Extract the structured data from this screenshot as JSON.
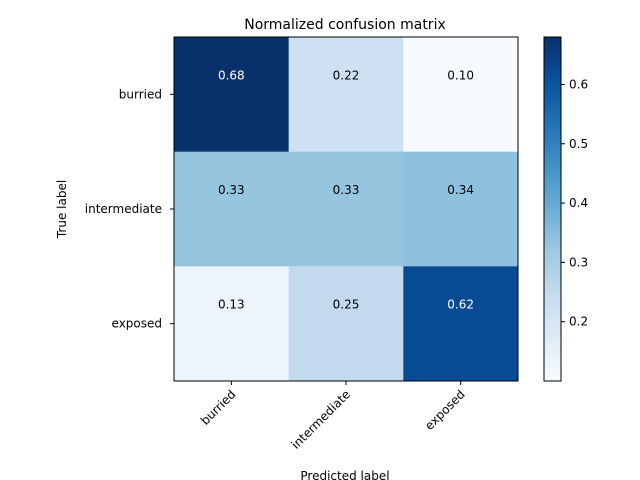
{
  "chart_data": {
    "type": "heatmap",
    "title": "Normalized confusion matrix",
    "xlabel": "Predicted label",
    "ylabel": "True label",
    "x_categories": [
      "burried",
      "intermediate",
      "exposed"
    ],
    "y_categories": [
      "burried",
      "intermediate",
      "exposed"
    ],
    "values": [
      [
        0.68,
        0.22,
        0.1
      ],
      [
        0.33,
        0.33,
        0.34
      ],
      [
        0.13,
        0.25,
        0.62
      ]
    ],
    "value_labels": [
      [
        "0.68",
        "0.22",
        "0.10"
      ],
      [
        "0.33",
        "0.33",
        "0.34"
      ],
      [
        "0.13",
        "0.25",
        "0.62"
      ]
    ],
    "colormap": "Blues",
    "colorbar": {
      "range": [
        0.1,
        0.68
      ],
      "ticks": [
        0.2,
        0.3,
        0.4,
        0.5,
        0.6
      ],
      "tick_labels": [
        "0.2",
        "0.3",
        "0.4",
        "0.5",
        "0.6"
      ]
    },
    "x_tick_rotation_deg": 45
  }
}
